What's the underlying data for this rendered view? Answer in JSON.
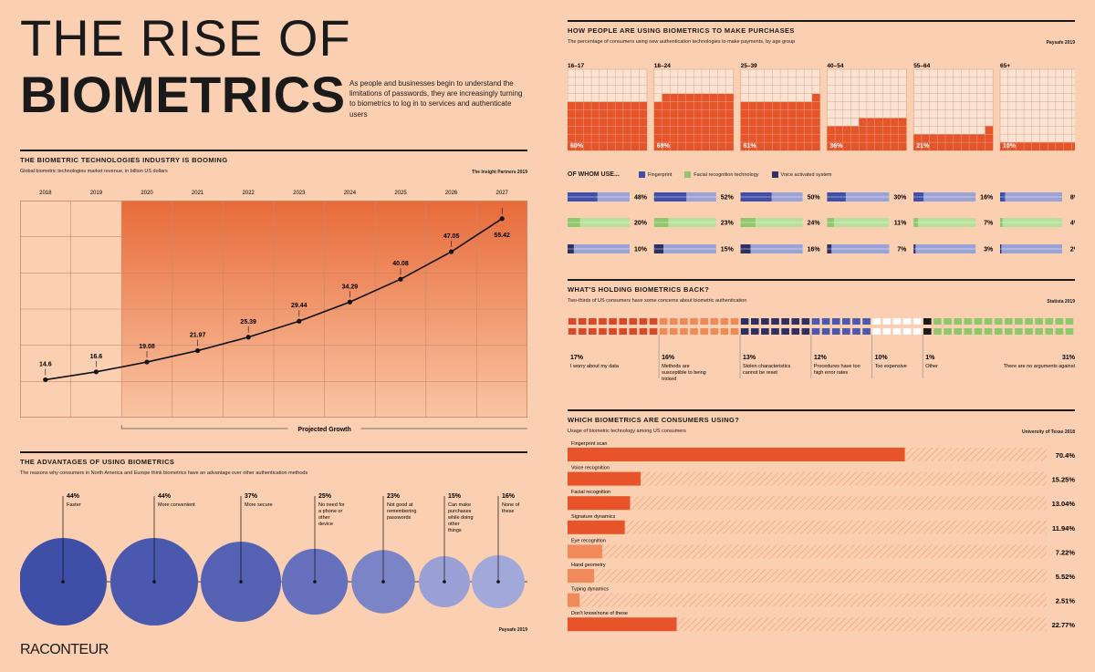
{
  "title_line1": "THE RISE OF",
  "title_line2": "BIOMETRICS",
  "intro": "As people and businesses begin to understand the limitations of passwords, they are increasingly turning to biometrics to log in to services and authenticate users",
  "logo": "RACONTEUR",
  "industry": {
    "header": "THE BIOMETRIC TECHNOLOGIES INDUSTRY IS BOOMING",
    "subtitle": "Global biometric technologies market revenue, in billion US dollars",
    "source": "The Insight Partners 2019",
    "projected_label": "Projected Growth"
  },
  "advantages": {
    "header": "THE ADVANTAGES OF USING BIOMETRICS",
    "subtitle": "The reasons why consumers in North America and Europe think biometrics have an advantage over other authentication methods",
    "source": "Paysafe 2019"
  },
  "purchases": {
    "header": "HOW PEOPLE ARE USING BIOMETRICS TO MAKE PURCHASES",
    "subtitle": "The percentage of consumers using new authentication technologies to make payments, by age group",
    "source": "Paysafe 2019",
    "of_whom": "OF WHOM USE...",
    "legend": [
      {
        "label": "Fingerprint",
        "color": "#3f4fa8"
      },
      {
        "label": "Facial recognition technology",
        "color": "#8dc86a"
      },
      {
        "label": "Voice activated system",
        "color": "#2e2f62"
      }
    ]
  },
  "holding": {
    "header": "WHAT'S HOLDING BIOMETRICS BACK?",
    "subtitle": "Two-thirds of US consumers have some concerns about biometric authentication",
    "source": "Statista 2019"
  },
  "which": {
    "header": "WHICH BIOMETRICS ARE CONSUMERS USING?",
    "subtitle": "Usage of biometric technology among US consumers",
    "source": "University of Texas 2018"
  },
  "colors": {
    "background": "#fbcfb1",
    "orange": "#e8542a",
    "blue": "#3f4fa8",
    "green": "#8dc86a",
    "navy": "#2e2f62"
  },
  "chart_data": [
    {
      "type": "line",
      "title": "THE BIOMETRIC TECHNOLOGIES INDUSTRY IS BOOMING",
      "x": [
        "2018",
        "2019",
        "2020",
        "2021",
        "2022",
        "2023",
        "2024",
        "2025",
        "2026",
        "2027"
      ],
      "values": [
        14.6,
        16.6,
        19.08,
        21.97,
        25.39,
        29.44,
        34.29,
        40.08,
        47.05,
        55.42
      ],
      "labels": [
        "14.6",
        "16.6",
        "19.08",
        "21.97",
        "25.39",
        "29.44",
        "34.29",
        "40.08",
        "47.05",
        "55.42"
      ],
      "projected_from": "2020"
    },
    {
      "type": "bubble",
      "title": "THE ADVANTAGES OF USING BIOMETRICS",
      "items": [
        {
          "pct": "44%",
          "value": 44,
          "label": "Faster",
          "color": "#3f4fa8"
        },
        {
          "pct": "44%",
          "value": 44,
          "label": "More convenient",
          "color": "#4a58ae"
        },
        {
          "pct": "37%",
          "value": 37,
          "label": "More secure",
          "color": "#5562b4"
        },
        {
          "pct": "25%",
          "value": 25,
          "label": "No need for a phone or other device",
          "color": "#6670bd"
        },
        {
          "pct": "23%",
          "value": 23,
          "label": "Not good at remembering passwords",
          "color": "#7b84c6"
        },
        {
          "pct": "15%",
          "value": 15,
          "label": "Can make purchases while doing other things",
          "color": "#9aa0d6"
        },
        {
          "pct": "16%",
          "value": 16,
          "label": "None of these",
          "color": "#a3a8da"
        }
      ]
    },
    {
      "type": "waffle",
      "title": "HOW PEOPLE ARE USING BIOMETRICS TO MAKE PURCHASES",
      "groups": [
        {
          "age": "16–17",
          "pct": "60%",
          "value": 60,
          "fingerprint": "48%",
          "fingerprint_v": 48,
          "facial": "20%",
          "facial_v": 20,
          "voice": "10%",
          "voice_v": 10
        },
        {
          "age": "18–24",
          "pct": "69%",
          "value": 69,
          "fingerprint": "52%",
          "fingerprint_v": 52,
          "facial": "23%",
          "facial_v": 23,
          "voice": "15%",
          "voice_v": 15
        },
        {
          "age": "25–39",
          "pct": "61%",
          "value": 61,
          "fingerprint": "50%",
          "fingerprint_v": 50,
          "facial": "24%",
          "facial_v": 24,
          "voice": "16%",
          "voice_v": 16
        },
        {
          "age": "40–54",
          "pct": "36%",
          "value": 36,
          "fingerprint": "30%",
          "fingerprint_v": 30,
          "facial": "11%",
          "facial_v": 11,
          "voice": "7%",
          "voice_v": 7
        },
        {
          "age": "55–64",
          "pct": "21%",
          "value": 21,
          "fingerprint": "16%",
          "fingerprint_v": 16,
          "facial": "7%",
          "facial_v": 7,
          "voice": "3%",
          "voice_v": 3
        },
        {
          "age": "65+",
          "pct": "10%",
          "value": 10,
          "fingerprint": "8%",
          "fingerprint_v": 8,
          "facial": "4%",
          "facial_v": 4,
          "voice": "2%",
          "voice_v": 2
        }
      ]
    },
    {
      "type": "bar",
      "title": "WHAT'S HOLDING BIOMETRICS BACK?",
      "items": [
        {
          "pct": "17%",
          "value": 17,
          "label": "I worry about my data",
          "color": "#d8482a"
        },
        {
          "pct": "16%",
          "value": 16,
          "label": "Methods are susceptible to being tricked",
          "color": "#ee8a58"
        },
        {
          "pct": "13%",
          "value": 13,
          "label": "Stolen characteristics cannot be reset",
          "color": "#2e2f62"
        },
        {
          "pct": "12%",
          "value": 12,
          "label": "Procedures have too high error rates",
          "color": "#4a58ae"
        },
        {
          "pct": "10%",
          "value": 10,
          "label": "Too expensive",
          "color": "#ffffff"
        },
        {
          "pct": "1%",
          "value": 1,
          "label": "Other",
          "color": "#1a1a1a"
        },
        {
          "pct": "31%",
          "value": 31,
          "label": "There are no arguments against",
          "color": "#8dc86a"
        }
      ]
    },
    {
      "type": "bar",
      "title": "WHICH BIOMETRICS ARE CONSUMERS USING?",
      "items": [
        {
          "label": "Fingerprint scan",
          "value": 70.4,
          "display": "70.4%"
        },
        {
          "label": "Voice recognition",
          "value": 15.25,
          "display": "15.25%"
        },
        {
          "label": "Facial recognition",
          "value": 13.04,
          "display": "13.04%"
        },
        {
          "label": "Signature dynamics",
          "value": 11.94,
          "display": "11.94%"
        },
        {
          "label": "Eye recognition",
          "value": 7.22,
          "display": "7.22%"
        },
        {
          "label": "Hand geometry",
          "value": 5.52,
          "display": "5.52%"
        },
        {
          "label": "Typing dynamics",
          "value": 2.51,
          "display": "2.51%"
        },
        {
          "label": "Don't know/none of these",
          "value": 22.77,
          "display": "22.77%"
        }
      ]
    }
  ]
}
